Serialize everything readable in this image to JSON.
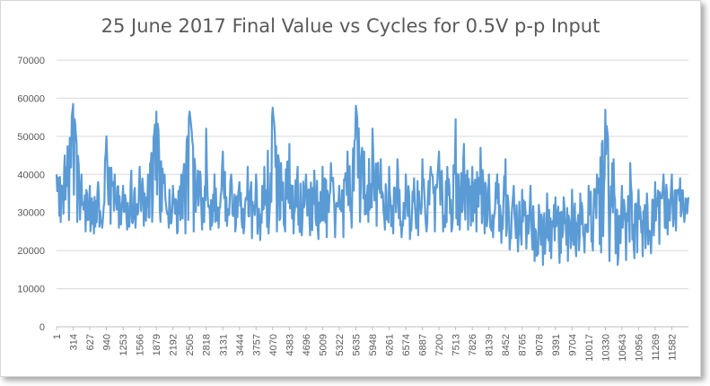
{
  "chart_data": {
    "type": "line",
    "title": "25 June 2017 Final Value vs Cycles for 0.5V p-p Input",
    "xlabel": "",
    "ylabel": "",
    "ylim": [
      0,
      70000
    ],
    "yticks": [
      0,
      10000,
      20000,
      30000,
      40000,
      50000,
      60000,
      70000
    ],
    "ytick_labels": [
      "0",
      "10000",
      "20000",
      "30000",
      "40000",
      "50000",
      "60000",
      "70000"
    ],
    "xlim": [
      1,
      11895
    ],
    "xtick_labels": [
      "1",
      "314",
      "627",
      "940",
      "1253",
      "1566",
      "1879",
      "2192",
      "2505",
      "2818",
      "3131",
      "3444",
      "3757",
      "4070",
      "4383",
      "4696",
      "5009",
      "5322",
      "5635",
      "5948",
      "6261",
      "6574",
      "6887",
      "7200",
      "7513",
      "7826",
      "8139",
      "8452",
      "8765",
      "9078",
      "9391",
      "9704",
      "10017",
      "10330",
      "10643",
      "10956",
      "11269",
      "11582"
    ],
    "grid": "horizontal",
    "legend": "none",
    "series_color": "#5b9bd5",
    "series": [
      {
        "name": "",
        "x": [
          1,
          157,
          314,
          470,
          627,
          783,
          940,
          1096,
          1253,
          1409,
          1566,
          1722,
          1879,
          2035,
          2192,
          2348,
          2505,
          2661,
          2818,
          2974,
          3131,
          3287,
          3444,
          3600,
          3757,
          3913,
          4070,
          4226,
          4383,
          4539,
          4696,
          4852,
          5009,
          5165,
          5322,
          5478,
          5635,
          5791,
          5948,
          6104,
          6261,
          6417,
          6574,
          6730,
          6887,
          7043,
          7200,
          7356,
          7513,
          7669,
          7826,
          7982,
          8139,
          8295,
          8452,
          8608,
          8765,
          8921,
          9078,
          9234,
          9391,
          9547,
          9704,
          9860,
          10017,
          10173,
          10330,
          10486,
          10643,
          10799,
          10956,
          11112,
          11269,
          11425,
          11582,
          11738,
          11895
        ],
        "y": [
          34000,
          36000,
          58500,
          33000,
          31000,
          30000,
          37000,
          36000,
          31000,
          30000,
          33000,
          34000,
          56000,
          33000,
          30000,
          31000,
          56500,
          32000,
          34000,
          31000,
          36000,
          33000,
          31000,
          32000,
          29000,
          31000,
          57000,
          32000,
          34000,
          32000,
          31000,
          31000,
          33000,
          34000,
          29000,
          35000,
          58000,
          37000,
          36000,
          36000,
          33000,
          34000,
          30000,
          30000,
          35000,
          34000,
          36000,
          34000,
          33000,
          36000,
          34000,
          35000,
          33000,
          32000,
          30000,
          29000,
          27000,
          28000,
          25000,
          27000,
          26000,
          25000,
          28000,
          27000,
          29000,
          30000,
          57000,
          30000,
          28000,
          27000,
          26000,
          27000,
          28000,
          33000,
          34000,
          35000,
          34000
        ],
        "y_min": [
          28000,
          27000,
          29000,
          26000,
          24000,
          25000,
          27000,
          27000,
          25000,
          26000,
          26000,
          27000,
          28000,
          27000,
          25000,
          24000,
          25000,
          25000,
          26000,
          25000,
          27000,
          26000,
          24000,
          25000,
          21500,
          24000,
          25000,
          25000,
          25000,
          24000,
          24000,
          24000,
          22000,
          25000,
          22000,
          25000,
          27000,
          28000,
          27000,
          26000,
          25000,
          24000,
          23000,
          23000,
          25000,
          25000,
          25000,
          25000,
          25000,
          26000,
          25000,
          25000,
          24000,
          23000,
          21000,
          19500,
          20000,
          21000,
          13500,
          19000,
          17000,
          16500,
          18000,
          19000,
          20000,
          20000,
          19000,
          15500,
          17000,
          18000,
          18000,
          19000,
          19500,
          24000,
          24500,
          26000,
          29000
        ],
        "y_max": [
          40000,
          45000,
          58500,
          40000,
          37000,
          38000,
          50000,
          40000,
          37000,
          41000,
          42000,
          40000,
          56500,
          40000,
          37000,
          40000,
          56500,
          41000,
          52000,
          40000,
          46000,
          40000,
          38000,
          42000,
          40000,
          42000,
          57500,
          43000,
          48000,
          42000,
          40000,
          41000,
          42000,
          43000,
          37000,
          46000,
          58000,
          46000,
          52000,
          44000,
          42000,
          44000,
          40000,
          39000,
          44000,
          42000,
          46000,
          42000,
          54500,
          48000,
          42000,
          47000,
          40000,
          40000,
          44000,
          37000,
          36000,
          37000,
          32000,
          35000,
          34000,
          34000,
          36000,
          35000,
          37000,
          40000,
          57000,
          44000,
          37000,
          43000,
          36000,
          35000,
          38000,
          40000,
          40000,
          39000,
          39000
        ]
      }
    ]
  }
}
